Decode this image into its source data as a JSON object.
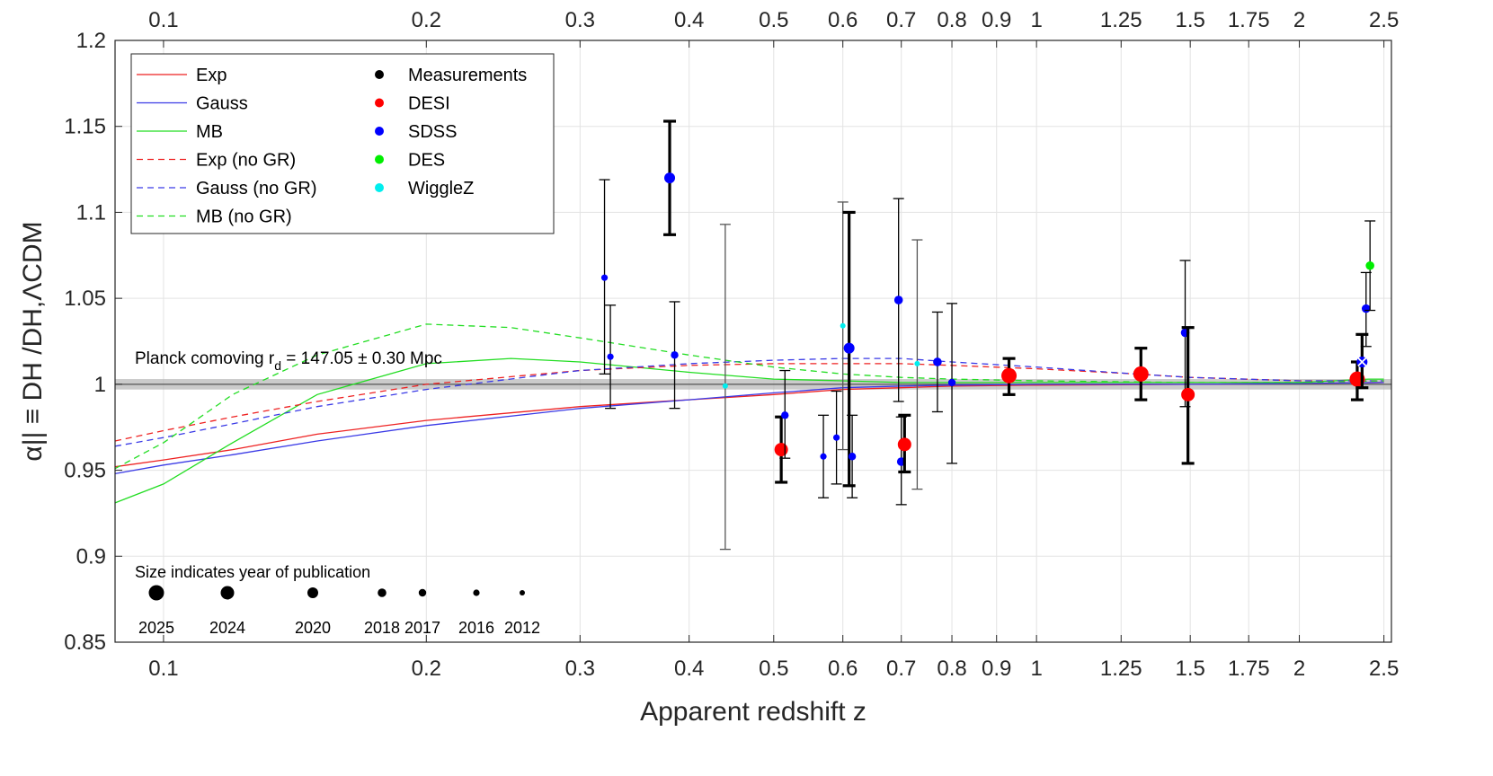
{
  "chart_data": {
    "type": "scatter",
    "title": "",
    "xlabel": "Apparent redshift z",
    "ylabel": "α|| ≡ DH /DH,ΛCDM",
    "xscale": "log",
    "xlim": [
      0.088,
      2.55
    ],
    "ylim": [
      0.85,
      1.2
    ],
    "grid": true,
    "x_ticks": [
      0.1,
      0.2,
      0.3,
      0.4,
      0.5,
      0.6,
      0.7,
      0.8,
      0.9,
      1,
      1.25,
      1.5,
      1.75,
      2,
      2.5
    ],
    "x_tick_labels": [
      "0.1",
      "0.2",
      "0.3",
      "0.4",
      "0.5",
      "0.6",
      "0.7",
      "0.8",
      "0.9",
      "1",
      "1.25",
      "1.5",
      "1.75",
      "2",
      "2.5"
    ],
    "y_ticks": [
      0.85,
      0.9,
      0.95,
      1,
      1.05,
      1.1,
      1.15,
      1.2
    ],
    "y_tick_labels": [
      "0.85",
      "0.9",
      "0.95",
      "1",
      "1.05",
      "1.1",
      "1.15",
      "1.2"
    ],
    "colors": {
      "Exp": "#ee2222",
      "Gauss": "#3a3ae6",
      "MB": "#22dd22",
      "DESI": "#ff0000",
      "SDSS": "#0000ff",
      "DES": "#00ee00",
      "WiggleZ": "#00eeee",
      "Measurements": "#000000"
    },
    "reference": {
      "y": 1.0,
      "band": [
        0.998,
        1.002
      ]
    },
    "annotation": {
      "label": "Planck comoving r",
      "sub": "d",
      "rest": " = 147.05 ± 0.30 Mpc"
    },
    "legend": {
      "lines": [
        {
          "label": "Exp",
          "model": "Exp",
          "dashed": false
        },
        {
          "label": "Gauss",
          "model": "Gauss",
          "dashed": false
        },
        {
          "label": "MB",
          "model": "MB",
          "dashed": false
        },
        {
          "label": "Exp (no GR)",
          "model": "Exp",
          "dashed": true
        },
        {
          "label": "Gauss (no GR)",
          "model": "Gauss",
          "dashed": true
        },
        {
          "label": "MB (no GR)",
          "model": "MB",
          "dashed": true
        }
      ],
      "markers": [
        {
          "label": "Measurements",
          "survey": "Measurements"
        },
        {
          "label": "DESI",
          "survey": "DESI"
        },
        {
          "label": "SDSS",
          "survey": "SDSS"
        },
        {
          "label": "DES",
          "survey": "DES"
        },
        {
          "label": "WiggleZ",
          "survey": "WiggleZ"
        }
      ]
    },
    "series": [
      {
        "name": "Exp",
        "model": "Exp",
        "dashed": false,
        "x": [
          0.088,
          0.1,
          0.12,
          0.15,
          0.2,
          0.3,
          0.4,
          0.5,
          0.6,
          0.7,
          0.8,
          1.0,
          1.5,
          2.0,
          2.5
        ],
        "y": [
          0.952,
          0.956,
          0.962,
          0.971,
          0.979,
          0.987,
          0.991,
          0.994,
          0.997,
          0.998,
          0.999,
          0.9995,
          1.0,
          1.0005,
          1.001
        ]
      },
      {
        "name": "Gauss",
        "model": "Gauss",
        "dashed": false,
        "x": [
          0.088,
          0.1,
          0.12,
          0.15,
          0.2,
          0.3,
          0.4,
          0.5,
          0.6,
          0.7,
          0.8,
          1.0,
          1.5,
          2.0,
          2.5
        ],
        "y": [
          0.948,
          0.953,
          0.959,
          0.967,
          0.976,
          0.986,
          0.991,
          0.995,
          0.998,
          0.999,
          0.9995,
          1.0,
          1.0,
          1.0005,
          1.001
        ]
      },
      {
        "name": "MB",
        "model": "MB",
        "dashed": false,
        "x": [
          0.088,
          0.1,
          0.12,
          0.15,
          0.2,
          0.25,
          0.3,
          0.4,
          0.5,
          0.6,
          0.7,
          0.8,
          1.0,
          1.5,
          2.0,
          2.4,
          2.5
        ],
        "y": [
          0.931,
          0.942,
          0.966,
          0.994,
          1.012,
          1.015,
          1.013,
          1.007,
          1.003,
          1.002,
          1.001,
          1.001,
          1.001,
          1.001,
          1.001,
          1.003,
          1.003
        ]
      },
      {
        "name": "Exp (no GR)",
        "model": "Exp",
        "dashed": true,
        "x": [
          0.088,
          0.1,
          0.12,
          0.15,
          0.2,
          0.3,
          0.4,
          0.5,
          0.6,
          0.7,
          0.8,
          1.0,
          1.3,
          1.5,
          2.0,
          2.5
        ],
        "y": [
          0.967,
          0.973,
          0.981,
          0.99,
          1.0,
          1.008,
          1.011,
          1.012,
          1.012,
          1.012,
          1.011,
          1.009,
          1.006,
          1.004,
          1.002,
          1.002
        ]
      },
      {
        "name": "Gauss (no GR)",
        "model": "Gauss",
        "dashed": true,
        "x": [
          0.088,
          0.1,
          0.12,
          0.15,
          0.2,
          0.3,
          0.4,
          0.5,
          0.6,
          0.7,
          0.8,
          1.0,
          1.3,
          1.5,
          2.0,
          2.5
        ],
        "y": [
          0.964,
          0.969,
          0.977,
          0.987,
          0.997,
          1.008,
          1.012,
          1.014,
          1.015,
          1.015,
          1.013,
          1.01,
          1.006,
          1.004,
          1.002,
          1.002
        ]
      },
      {
        "name": "MB (no GR)",
        "model": "MB",
        "dashed": true,
        "x": [
          0.088,
          0.1,
          0.12,
          0.15,
          0.2,
          0.25,
          0.3,
          0.4,
          0.5,
          0.6,
          0.7,
          0.8,
          1.0,
          1.5,
          2.0,
          2.5
        ],
        "y": [
          0.951,
          0.966,
          0.994,
          1.017,
          1.035,
          1.033,
          1.027,
          1.017,
          1.01,
          1.006,
          1.004,
          1.003,
          1.002,
          1.001,
          1.001,
          1.002
        ]
      }
    ],
    "points": [
      {
        "z": 0.32,
        "y": 1.062,
        "lo": 1.006,
        "hi": 1.119,
        "survey": "SDSS",
        "year": 2016
      },
      {
        "z": 0.325,
        "y": 1.016,
        "lo": 0.986,
        "hi": 1.046,
        "survey": "SDSS",
        "year": 2016
      },
      {
        "z": 0.38,
        "y": 1.12,
        "lo": 1.087,
        "hi": 1.153,
        "survey": "SDSS",
        "year": 2020
      },
      {
        "z": 0.385,
        "y": 1.017,
        "lo": 0.986,
        "hi": 1.048,
        "survey": "SDSS",
        "year": 2017
      },
      {
        "z": 0.44,
        "y": 0.999,
        "lo": 0.904,
        "hi": 1.093,
        "survey": "WiggleZ",
        "year": 2012
      },
      {
        "z": 0.51,
        "y": 0.962,
        "lo": 0.943,
        "hi": 0.981,
        "survey": "DESI",
        "year": 2024
      },
      {
        "z": 0.515,
        "y": 0.982,
        "lo": 0.957,
        "hi": 1.008,
        "survey": "SDSS",
        "year": 2017
      },
      {
        "z": 0.57,
        "y": 0.958,
        "lo": 0.934,
        "hi": 0.982,
        "survey": "SDSS",
        "year": 2016
      },
      {
        "z": 0.59,
        "y": 0.969,
        "lo": 0.942,
        "hi": 0.996,
        "survey": "SDSS",
        "year": 2016
      },
      {
        "z": 0.6,
        "y": 1.034,
        "lo": 0.962,
        "hi": 1.106,
        "survey": "WiggleZ",
        "year": 2012
      },
      {
        "z": 0.61,
        "y": 1.021,
        "lo": 0.941,
        "hi": 1.1,
        "survey": "SDSS",
        "year": 2020
      },
      {
        "z": 0.615,
        "y": 0.958,
        "lo": 0.934,
        "hi": 0.982,
        "survey": "SDSS",
        "year": 2017
      },
      {
        "z": 0.695,
        "y": 1.049,
        "lo": 0.99,
        "hi": 1.108,
        "survey": "SDSS",
        "year": 2018
      },
      {
        "z": 0.7,
        "y": 0.955,
        "lo": 0.93,
        "hi": 0.981,
        "survey": "SDSS",
        "year": 2018
      },
      {
        "z": 0.706,
        "y": 0.965,
        "lo": 0.949,
        "hi": 0.982,
        "survey": "DESI",
        "year": 2024
      },
      {
        "z": 0.73,
        "y": 1.012,
        "lo": 0.939,
        "hi": 1.084,
        "survey": "WiggleZ",
        "year": 2012
      },
      {
        "z": 0.77,
        "y": 1.013,
        "lo": 0.984,
        "hi": 1.042,
        "survey": "SDSS",
        "year": 2018
      },
      {
        "z": 0.8,
        "y": 1.001,
        "lo": 0.954,
        "hi": 1.047,
        "survey": "SDSS",
        "year": 2017
      },
      {
        "z": 0.93,
        "y": 1.005,
        "lo": 0.994,
        "hi": 1.015,
        "survey": "DESI",
        "year": 2025
      },
      {
        "z": 1.317,
        "y": 1.006,
        "lo": 0.991,
        "hi": 1.021,
        "survey": "DESI",
        "year": 2025
      },
      {
        "z": 1.48,
        "y": 1.03,
        "lo": 0.987,
        "hi": 1.072,
        "survey": "SDSS",
        "year": 2018
      },
      {
        "z": 1.491,
        "y": 0.994,
        "lo": 0.954,
        "hi": 1.033,
        "survey": "DESI",
        "year": 2024
      },
      {
        "z": 2.33,
        "y": 1.003,
        "lo": 0.991,
        "hi": 1.013,
        "survey": "DESI",
        "year": 2025
      },
      {
        "z": 2.36,
        "y": 1.013,
        "lo": 0.998,
        "hi": 1.029,
        "survey": "SDSS",
        "year": 2020,
        "marker": "x"
      },
      {
        "z": 2.385,
        "y": 1.044,
        "lo": 1.022,
        "hi": 1.065,
        "survey": "SDSS",
        "year": 2018
      },
      {
        "z": 2.41,
        "y": 1.069,
        "lo": 1.043,
        "hi": 1.095,
        "survey": "DES",
        "year": 2018
      }
    ],
    "size_legend": {
      "title": "Size indicates year of publication",
      "years": [
        "2025",
        "2024",
        "2020",
        "2018",
        "2017",
        "2016",
        "2012"
      ]
    }
  }
}
